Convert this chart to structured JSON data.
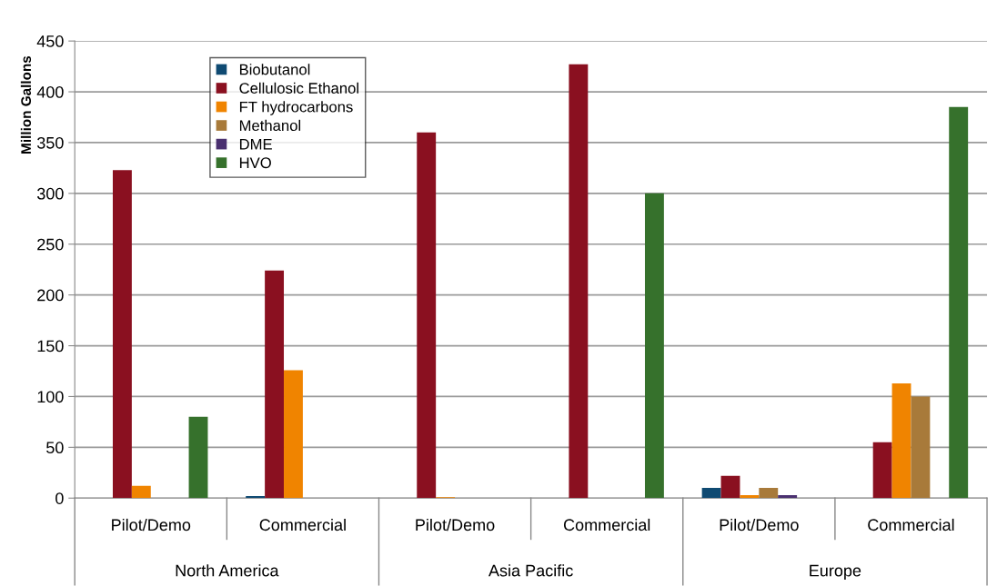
{
  "chart_data": {
    "type": "bar",
    "ylabel": "Million Gallons",
    "categories": [
      "Pilot/Demo",
      "Commercial",
      "Pilot/Demo",
      "Commercial",
      "Pilot/Demo",
      "Commercial"
    ],
    "annotations": [
      "North America",
      "Asia Pacific",
      "Europe"
    ],
    "series": [
      {
        "name": "Biobutanol",
        "color": "#0f4a72",
        "values": [
          null,
          2,
          null,
          null,
          10,
          null
        ]
      },
      {
        "name": "Cellulosic Ethanol",
        "color": "#8a1020",
        "values": [
          323,
          224,
          360,
          427,
          22,
          55
        ]
      },
      {
        "name": "FT hydrocarbons",
        "color": "#f08400",
        "values": [
          12,
          126,
          1,
          null,
          3,
          113
        ]
      },
      {
        "name": "Methanol",
        "color": "#a87a3a",
        "values": [
          null,
          null,
          null,
          null,
          10,
          100
        ]
      },
      {
        "name": "DME",
        "color": "#4a3070",
        "values": [
          null,
          null,
          null,
          null,
          3,
          null
        ]
      },
      {
        "name": "HVO",
        "color": "#36712c",
        "values": [
          80,
          null,
          null,
          300,
          null,
          385
        ]
      }
    ],
    "ylim": [
      0,
      450
    ],
    "yticks": [
      0,
      50,
      100,
      150,
      200,
      250,
      300,
      350,
      400,
      450
    ],
    "grid": "y",
    "legend": "top left"
  }
}
